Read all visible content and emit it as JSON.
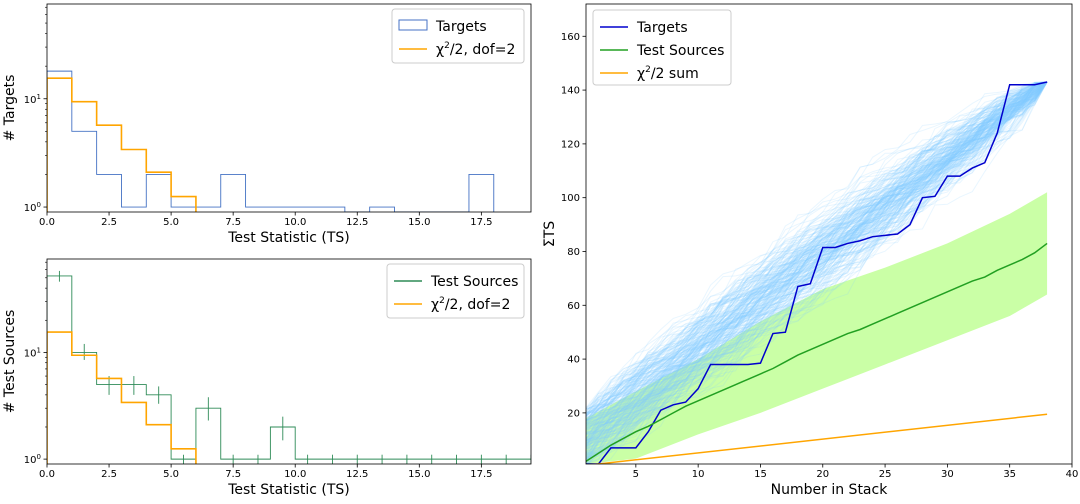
{
  "chart_data": [
    {
      "id": "top-left",
      "type": "histogram",
      "xlabel": "Test Statistic (TS)",
      "ylabel": "# Targets",
      "xlim": [
        0,
        19.5
      ],
      "ylim": [
        0.9,
        75
      ],
      "yscale": "log",
      "xticks": [
        0,
        2.5,
        5,
        7.5,
        10,
        12.5,
        15,
        17.5
      ],
      "xtick_labels": [
        "0.0",
        "2.5",
        "5.0",
        "7.5",
        "10.0",
        "12.5",
        "15.0",
        "17.5"
      ],
      "yticks": [
        1,
        10
      ],
      "legend_position": "top-right",
      "series": [
        {
          "name": "Targets",
          "kind": "step-hist",
          "color": "#4472c4",
          "edges": [
            0,
            1,
            2,
            3,
            4,
            5,
            6,
            7,
            8,
            9,
            10,
            11,
            12,
            13,
            14,
            15,
            16,
            17,
            18
          ],
          "counts": [
            18,
            5,
            2,
            1,
            2,
            1,
            1,
            2,
            1,
            1,
            1,
            1,
            0,
            1,
            0,
            0,
            0,
            2
          ]
        },
        {
          "name": "χ²/2, dof=2",
          "kind": "step-hist",
          "color": "#ffa500",
          "edges": [
            0,
            1,
            2,
            3,
            4,
            5,
            6
          ],
          "counts": [
            15.5,
            9.4,
            5.7,
            3.4,
            2.1,
            1.25
          ]
        }
      ]
    },
    {
      "id": "bottom-left",
      "type": "histogram",
      "xlabel": "Test Statistic (TS)",
      "ylabel": "# Test Sources",
      "xlim": [
        0,
        19.5
      ],
      "ylim": [
        0.9,
        75
      ],
      "yscale": "log",
      "xticks": [
        0,
        2.5,
        5,
        7.5,
        10,
        12.5,
        15,
        17.5
      ],
      "xtick_labels": [
        "0.0",
        "2.5",
        "5.0",
        "7.5",
        "10.0",
        "12.5",
        "15.0",
        "17.5"
      ],
      "yticks": [
        1,
        10
      ],
      "legend_position": "top-right",
      "series": [
        {
          "name": "Test Sources",
          "kind": "step-hist-errors",
          "color": "#2e8b57",
          "edges": [
            0,
            1,
            2,
            3,
            4,
            5,
            6,
            7,
            8,
            9,
            10,
            11,
            12,
            13,
            14,
            15,
            16,
            17,
            18,
            19,
            20
          ],
          "counts": [
            52,
            10,
            5,
            5,
            4,
            1,
            3,
            1,
            1,
            2,
            1,
            1,
            1,
            1,
            1,
            1,
            1,
            1,
            1,
            1
          ],
          "err_range": [
            [
              46,
              58
            ],
            [
              8.5,
              12
            ],
            [
              4,
              6
            ],
            [
              4,
              6
            ],
            [
              3.3,
              4.8
            ],
            [
              0.9,
              1.1
            ],
            [
              2.3,
              3.8
            ],
            [
              0.9,
              1.1
            ],
            [
              0.9,
              1.1
            ],
            [
              1.5,
              2.5
            ],
            [
              0.9,
              1.1
            ],
            [
              0.9,
              1.1
            ],
            [
              0.9,
              1.1
            ],
            [
              0.9,
              1.1
            ],
            [
              0.9,
              1.1
            ],
            [
              0.9,
              1.1
            ],
            [
              0.9,
              1.1
            ],
            [
              0.9,
              1.1
            ],
            [
              0.9,
              1.1
            ],
            [
              0.9,
              1.1
            ]
          ]
        },
        {
          "name": "χ²/2, dof=2",
          "kind": "step-hist",
          "color": "#ffa500",
          "edges": [
            0,
            1,
            2,
            3,
            4,
            5,
            6
          ],
          "counts": [
            15.5,
            9.4,
            5.7,
            3.4,
            2.1,
            1.25
          ]
        }
      ]
    },
    {
      "id": "right",
      "type": "line",
      "xlabel": "Number in Stack",
      "ylabel": "ΣTS",
      "xlim": [
        1,
        40
      ],
      "ylim": [
        1,
        172
      ],
      "xticks": [
        5,
        10,
        15,
        20,
        25,
        30,
        35,
        40
      ],
      "yticks": [
        20,
        40,
        60,
        80,
        100,
        120,
        140,
        160
      ],
      "legend_position": "top-left",
      "bootstrap_color": "#87ceff",
      "band": {
        "color": "#b8ff88",
        "x": [
          1,
          5,
          10,
          15,
          20,
          25,
          30,
          35,
          38
        ],
        "lower": [
          1,
          3,
          12,
          20,
          29,
          38,
          47,
          56,
          64
        ],
        "upper": [
          18,
          28,
          40,
          54,
          66,
          74,
          83,
          94,
          102
        ]
      },
      "series": [
        {
          "name": "Targets",
          "color": "#0000cd",
          "x": [
            1,
            2,
            3,
            4,
            5,
            6,
            7,
            8,
            9,
            10,
            11,
            12,
            13,
            14,
            15,
            16,
            17,
            18,
            19,
            20,
            21,
            22,
            23,
            24,
            25,
            26,
            27,
            28,
            29,
            30,
            31,
            32,
            33,
            34,
            35,
            36,
            37,
            38
          ],
          "y": [
            1,
            1,
            7,
            7,
            7,
            13,
            21,
            23,
            24,
            29,
            38,
            38,
            38,
            38,
            38.5,
            49.5,
            50,
            67,
            68,
            81.5,
            81.5,
            83,
            84,
            85.5,
            86,
            86.5,
            90,
            100,
            100.5,
            108,
            108,
            111,
            113,
            124,
            142,
            142,
            142,
            143
          ]
        },
        {
          "name": "Test Sources",
          "color": "#22a022",
          "x": [
            1,
            2,
            3,
            4,
            5,
            6,
            7,
            8,
            9,
            10,
            11,
            12,
            13,
            14,
            15,
            16,
            17,
            18,
            19,
            20,
            21,
            22,
            23,
            24,
            25,
            26,
            27,
            28,
            29,
            30,
            31,
            32,
            33,
            34,
            35,
            36,
            37,
            38
          ],
          "y": [
            2,
            5,
            8,
            10.5,
            13,
            15,
            17.5,
            20,
            22.5,
            24.5,
            26.5,
            28.5,
            30.5,
            32.5,
            34.5,
            36.5,
            39,
            41.5,
            43.5,
            45.5,
            47.5,
            49.5,
            51,
            53,
            55,
            57,
            59,
            61,
            63,
            65,
            67,
            69,
            70.5,
            73,
            75,
            77,
            79.5,
            83
          ]
        },
        {
          "name": "χ²/2 sum",
          "color": "#ffa500",
          "x": [
            1,
            38
          ],
          "y": [
            0.5,
            19.5
          ]
        }
      ]
    }
  ]
}
